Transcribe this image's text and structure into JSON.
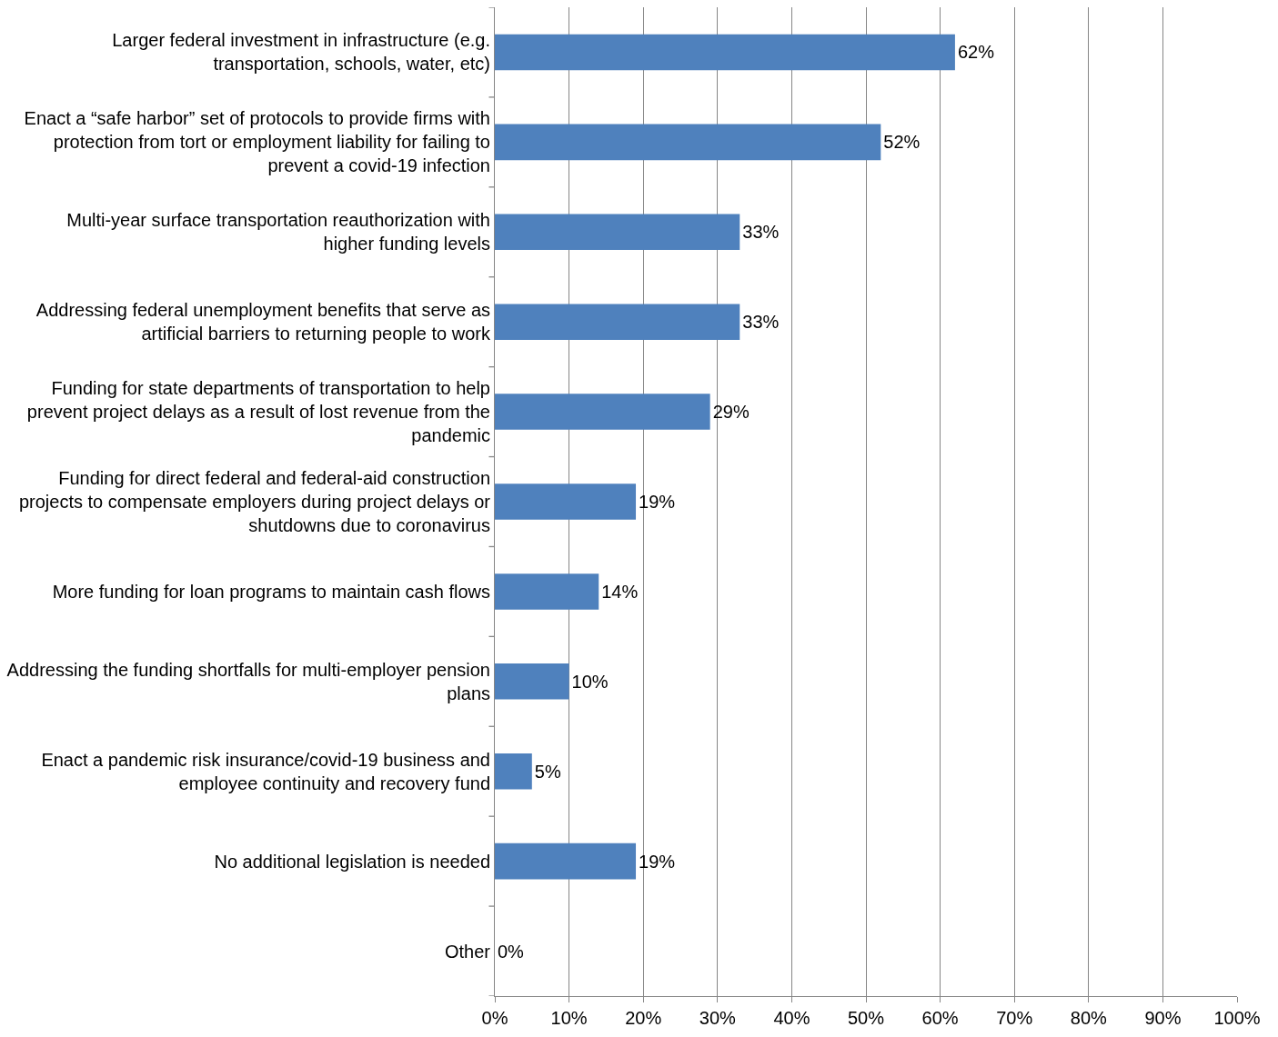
{
  "chart_data": {
    "type": "bar",
    "orientation": "horizontal",
    "categories": [
      "Larger federal investment in infrastructure (e.g. transportation, schools, water, etc)",
      "Enact a “safe harbor” set of protocols to provide firms with protection from tort or employment liability for failing to prevent a covid-19 infection",
      "Multi-year surface transportation reauthorization with higher funding levels",
      "Addressing federal unemployment benefits that serve as artificial barriers to returning people to work",
      "Funding for state departments of transportation to help prevent project delays as a result of lost revenue from the pandemic",
      "Funding for direct federal and federal-aid construction projects to compensate employers during project delays or shutdowns due to coronavirus",
      "More funding for loan programs to maintain cash flows",
      "Addressing the funding shortfalls for multi-employer pension plans",
      "Enact a pandemic risk insurance/covid-19 business and employee continuity and recovery fund",
      "No additional legislation is needed",
      "Other"
    ],
    "values": [
      62,
      52,
      33,
      33,
      29,
      19,
      14,
      10,
      5,
      19,
      0
    ],
    "value_labels": [
      "62%",
      "52%",
      "33%",
      "33%",
      "29%",
      "19%",
      "14%",
      "10%",
      "5%",
      "19%",
      "0%"
    ],
    "color": "#4f81bd",
    "xlim": [
      0,
      100
    ],
    "xticks": [
      {
        "value": 0,
        "label": "0%"
      },
      {
        "value": 10,
        "label": "10%"
      },
      {
        "value": 20,
        "label": "20%"
      },
      {
        "value": 30,
        "label": "30%"
      },
      {
        "value": 40,
        "label": "40%"
      },
      {
        "value": 50,
        "label": "50%"
      },
      {
        "value": 60,
        "label": "60%"
      },
      {
        "value": 70,
        "label": "70%"
      },
      {
        "value": 80,
        "label": "80%"
      },
      {
        "value": 90,
        "label": "90%"
      },
      {
        "value": 100,
        "label": "100%"
      }
    ],
    "grid": "x"
  }
}
